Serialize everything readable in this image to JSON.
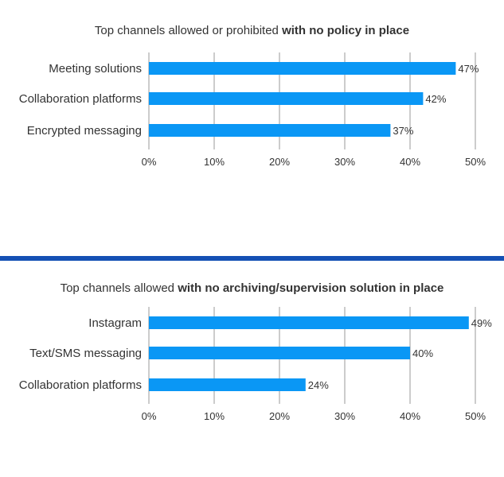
{
  "chart_data": [
    {
      "type": "bar",
      "orientation": "horizontal",
      "title_plain": "Top channels allowed or prohibited ",
      "title_bold": "with no policy in place",
      "categories": [
        "Meeting solutions",
        "Collaboration platforms",
        "Encrypted messaging"
      ],
      "values": [
        47,
        42,
        37
      ],
      "value_labels": [
        "47%",
        "42%",
        "37%"
      ],
      "xticks": [
        "0%",
        "10%",
        "20%",
        "30%",
        "40%",
        "50%"
      ],
      "xlim": [
        0,
        50
      ],
      "grid": true,
      "color": "#0a97f5"
    },
    {
      "type": "bar",
      "orientation": "horizontal",
      "title_plain": "Top channels allowed ",
      "title_bold": "with no archiving/supervision solution in place",
      "categories": [
        "Instagram",
        "Text/SMS messaging",
        "Collaboration platforms"
      ],
      "values": [
        49,
        40,
        24
      ],
      "value_labels": [
        "49%",
        "40%",
        "24%"
      ],
      "xticks": [
        "0%",
        "10%",
        "20%",
        "30%",
        "40%",
        "50%"
      ],
      "xlim": [
        0,
        50
      ],
      "grid": true,
      "color": "#0a97f5"
    }
  ],
  "colors": {
    "bar": "#0a97f5",
    "divider": "#1450b4",
    "grid": "#999999",
    "text": "#333333"
  }
}
